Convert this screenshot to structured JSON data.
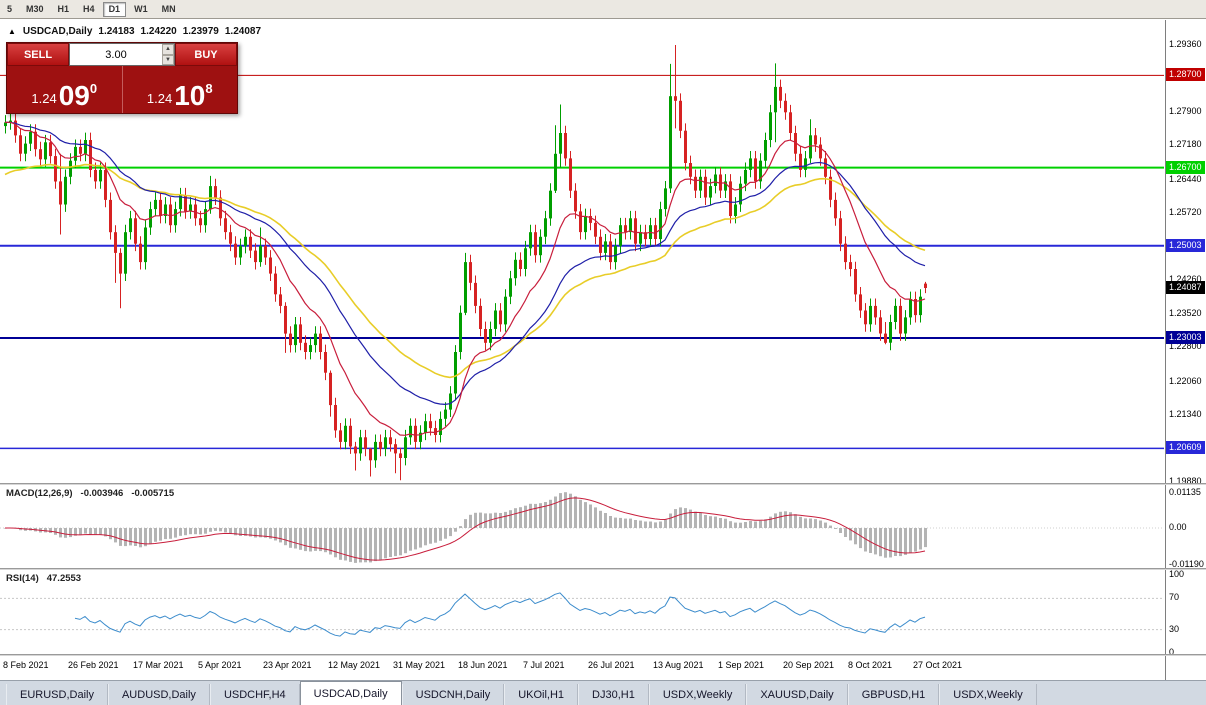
{
  "toolbar": {
    "timeframes": [
      "5",
      "M30",
      "H1",
      "H4",
      "D1",
      "W1",
      "MN"
    ],
    "active": "D1"
  },
  "chart_header": {
    "symbol": "USDCAD,Daily",
    "open": "1.24183",
    "high": "1.24220",
    "low": "1.23979",
    "close": "1.24087"
  },
  "trade_panel": {
    "sell_label": "SELL",
    "buy_label": "BUY",
    "volume": "3.00",
    "sell": {
      "big": "1.24",
      "pips": "09",
      "point": "0"
    },
    "buy": {
      "big": "1.24",
      "pips": "10",
      "point": "8"
    }
  },
  "colors": {
    "bull": "#009e00",
    "bear": "#d62222",
    "ma_fast": "#c81e3c",
    "ma_mid": "#1f1fa8",
    "ma_slow": "#e8cd28",
    "macd_bar": "#b4b4b4",
    "macd_signal": "#c81e3c",
    "rsi_line": "#3c8ccc",
    "current_tag": "#000000"
  },
  "chart_data": {
    "type": "candlestick",
    "symbol": "USDCAD",
    "timeframe": "Daily",
    "x_labels": [
      "8 Feb 2021",
      "26 Feb 2021",
      "17 Mar 2021",
      "5 Apr 2021",
      "23 Apr 2021",
      "12 May 2021",
      "31 May 2021",
      "18 Jun 2021",
      "7 Jul 2021",
      "26 Jul 2021",
      "13 Aug 2021",
      "1 Sep 2021",
      "20 Sep 2021",
      "8 Oct 2021",
      "27 Oct 2021"
    ],
    "x_label_indices": [
      0,
      13,
      26,
      39,
      52,
      65,
      78,
      91,
      104,
      117,
      130,
      143,
      156,
      169,
      182
    ],
    "y_axis_ticks": [
      "1.29360",
      "1.27900",
      "1.27180",
      "1.26440",
      "1.25720",
      "1.24260",
      "1.23520",
      "1.22800",
      "1.22060",
      "1.21340",
      "1.19880"
    ],
    "hlines": [
      {
        "price": 1.287,
        "label": "1.28700",
        "color": "#c00000",
        "width": 1
      },
      {
        "price": 1.267,
        "label": "1.26700",
        "color": "#00d000",
        "width": 2
      },
      {
        "price": 1.25003,
        "label": "1.25003",
        "color": "#2828d8",
        "width": 2
      },
      {
        "price": 1.23003,
        "label": "1.23003",
        "color": "#000096",
        "width": 2
      },
      {
        "price": 1.20609,
        "label": "1.20609",
        "color": "#2828d8",
        "width": 1.5
      }
    ],
    "current_price": {
      "value": 1.24087,
      "label": "1.24087"
    },
    "candles": {
      "first_open": 1.276,
      "last_open": 1.24183,
      "closes": [
        1.2768,
        1.2772,
        1.274,
        1.27,
        1.2722,
        1.2748,
        1.271,
        1.2688,
        1.2725,
        1.2695,
        1.264,
        1.259,
        1.265,
        1.2685,
        1.2715,
        1.27,
        1.273,
        1.2665,
        1.264,
        1.2665,
        1.26,
        1.253,
        1.2485,
        1.244,
        1.253,
        1.256,
        1.2505,
        1.2465,
        1.254,
        1.258,
        1.26,
        1.2565,
        1.259,
        1.2545,
        1.258,
        1.261,
        1.2575,
        1.259,
        1.256,
        1.2545,
        1.258,
        1.263,
        1.2605,
        1.256,
        1.253,
        1.2505,
        1.2475,
        1.25,
        1.252,
        1.249,
        1.2465,
        1.25,
        1.2475,
        1.244,
        1.2395,
        1.237,
        1.231,
        1.2285,
        1.233,
        1.229,
        1.227,
        1.2285,
        1.231,
        1.227,
        1.2225,
        1.2155,
        1.21,
        1.2075,
        1.211,
        1.2065,
        1.205,
        1.2085,
        1.206,
        1.2035,
        1.2075,
        1.206,
        1.2085,
        1.207,
        1.205,
        1.204,
        1.2085,
        1.211,
        1.2075,
        1.2095,
        1.212,
        1.2105,
        1.209,
        1.2125,
        1.2145,
        1.218,
        1.227,
        1.2355,
        1.2465,
        1.242,
        1.237,
        1.232,
        1.229,
        1.232,
        1.236,
        1.233,
        1.239,
        1.243,
        1.247,
        1.245,
        1.2495,
        1.253,
        1.248,
        1.252,
        1.256,
        1.262,
        1.27,
        1.2745,
        1.269,
        1.262,
        1.2575,
        1.253,
        1.2565,
        1.255,
        1.252,
        1.2485,
        1.251,
        1.2465,
        1.25,
        1.2545,
        1.253,
        1.256,
        1.2505,
        1.253,
        1.2515,
        1.2545,
        1.2515,
        1.258,
        1.2625,
        1.2825,
        1.2815,
        1.275,
        1.268,
        1.265,
        1.262,
        1.265,
        1.2605,
        1.263,
        1.2655,
        1.262,
        1.264,
        1.2565,
        1.259,
        1.2635,
        1.2665,
        1.269,
        1.264,
        1.2685,
        1.273,
        1.279,
        1.2845,
        1.2815,
        1.279,
        1.2745,
        1.27,
        1.2665,
        1.269,
        1.274,
        1.272,
        1.269,
        1.265,
        1.26,
        1.256,
        1.2505,
        1.2465,
        1.245,
        1.2395,
        1.236,
        1.233,
        1.237,
        1.2345,
        1.231,
        1.229,
        1.2335,
        1.237,
        1.231,
        1.2345,
        1.2385,
        1.235,
        1.239,
        1.24087
      ],
      "wick_overrides": {
        "11": [
          1.27,
          1.2525
        ],
        "22": [
          1.2545,
          1.242
        ],
        "23": [
          1.2495,
          1.2365
        ],
        "41": [
          1.2652,
          1.257
        ],
        "51": [
          1.254,
          1.2455
        ],
        "56": [
          1.2378,
          1.2268
        ],
        "65": [
          1.223,
          1.213
        ],
        "70": [
          1.2075,
          1.2013
        ],
        "73": [
          1.2062,
          1.2
        ],
        "78": [
          1.2082,
          1.2007
        ],
        "79": [
          1.2062,
          1.1992
        ],
        "90": [
          1.2285,
          1.2165
        ],
        "92": [
          1.2485,
          1.235
        ],
        "110": [
          1.2762,
          1.2615
        ],
        "111": [
          1.2807,
          1.267
        ],
        "133": [
          1.2895,
          1.2615
        ],
        "134": [
          1.2936,
          1.2755
        ],
        "154": [
          1.2896,
          1.2725
        ],
        "161": [
          1.2775,
          1.268
        ],
        "176": [
          1.2335,
          1.2287
        ],
        "184": [
          1.2422,
          1.23979
        ]
      }
    },
    "moving_averages": [
      {
        "name": "fast",
        "period": 13,
        "color_key": "ma_fast"
      },
      {
        "name": "mid",
        "period": 30,
        "color_key": "ma_mid"
      },
      {
        "name": "slow",
        "period": 45,
        "color_key": "ma_slow",
        "seed": 1.265
      }
    ],
    "indicators": {
      "macd": {
        "label": "MACD(12,26,9)",
        "value_main": "-0.003946",
        "value_signal": "-0.005715",
        "params": [
          12,
          26,
          9
        ],
        "axis": [
          "0.01135",
          "0.00",
          "-0.01190"
        ]
      },
      "rsi": {
        "label": "RSI(14)",
        "value": "47.2553",
        "period": 14,
        "axis": [
          "100",
          "70",
          "30",
          "0"
        ],
        "levels": [
          70,
          30
        ]
      }
    }
  },
  "tabs": {
    "active_index": 3,
    "items": [
      "EURUSD,Daily",
      "AUDUSD,Daily",
      "USDCHF,H4",
      "USDCAD,Daily",
      "USDCNH,Daily",
      "UKOil,H1",
      "DJ30,H1",
      "USDX,Weekly",
      "XAUUSD,Daily",
      "GBPUSD,H1",
      "USDX,Weekly"
    ]
  }
}
